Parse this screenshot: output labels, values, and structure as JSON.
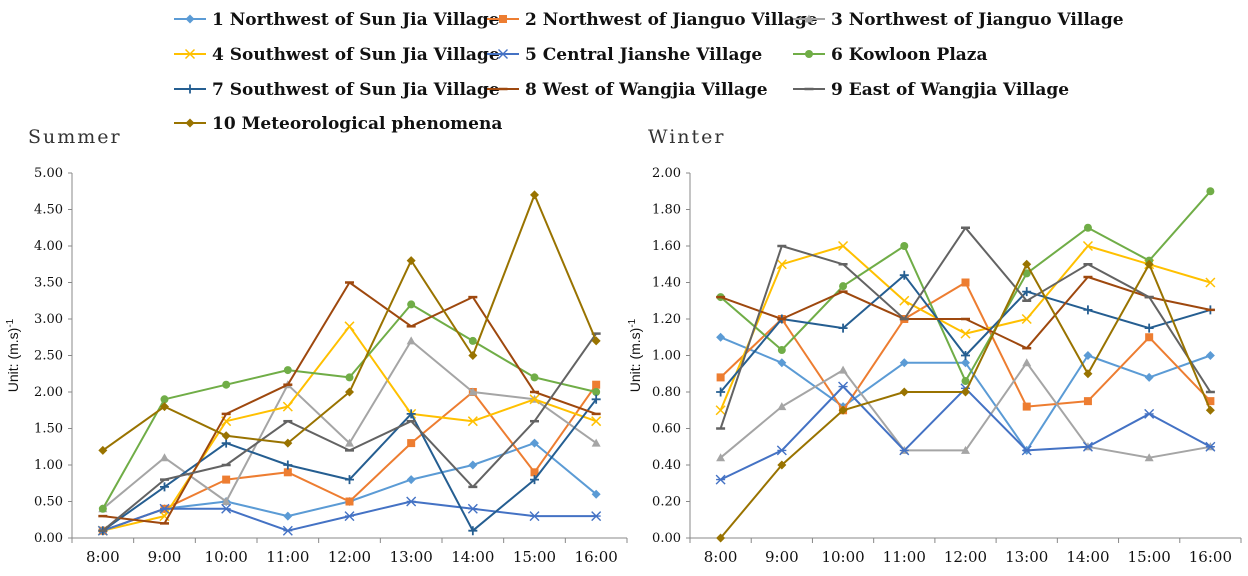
{
  "legend_layout_rows": [
    [
      0,
      1,
      2
    ],
    [
      3,
      4,
      5
    ],
    [
      6,
      7,
      8
    ],
    [
      9
    ]
  ],
  "chart_data": [
    {
      "type": "line",
      "title": "Summer",
      "ylabel": "Unit: (m.s)",
      "ylabel_sup": "-1",
      "ylim": [
        0,
        5
      ],
      "yticks": [
        "0.00",
        "0.50",
        "1.00",
        "1.50",
        "2.00",
        "2.50",
        "3.00",
        "3.50",
        "4.00",
        "4.50",
        "5.00"
      ],
      "x": [
        "8:00",
        "9:00",
        "10:00",
        "11:00",
        "12:00",
        "13:00",
        "14:00",
        "15:00",
        "16:00"
      ],
      "series": [
        {
          "name": "1 Northwest of Sun Jia Village",
          "color": "#5b9bd5",
          "marker": "diamond",
          "values": [
            0.1,
            0.4,
            0.5,
            0.3,
            0.5,
            0.8,
            1.0,
            1.3,
            0.6
          ]
        },
        {
          "name": "2 Northwest of Jianguo Village",
          "color": "#ed7d31",
          "marker": "square",
          "values": [
            0.1,
            0.4,
            0.8,
            0.9,
            0.5,
            1.3,
            2.0,
            0.9,
            2.1
          ]
        },
        {
          "name": "3 Northwest of Jianguo Village",
          "color": "#a5a5a5",
          "marker": "triangle",
          "values": [
            0.4,
            1.1,
            0.5,
            2.1,
            1.3,
            2.7,
            2.0,
            1.9,
            1.3
          ]
        },
        {
          "name": "4 Southwest of Sun Jia Village",
          "color": "#ffc000",
          "marker": "x",
          "values": [
            0.1,
            0.3,
            1.6,
            1.8,
            2.9,
            1.7,
            1.6,
            1.9,
            1.6
          ]
        },
        {
          "name": "5 Central Jianshe Village",
          "color": "#4472c4",
          "marker": "star",
          "values": [
            0.1,
            0.4,
            0.4,
            0.1,
            0.3,
            0.5,
            0.4,
            0.3,
            0.3
          ]
        },
        {
          "name": "6 Kowloon Plaza",
          "color": "#70ad47",
          "marker": "circle",
          "values": [
            0.4,
            1.9,
            2.1,
            2.3,
            2.2,
            3.2,
            2.7,
            2.2,
            2.0
          ]
        },
        {
          "name": "7 Southwest of Sun Jia Village",
          "color": "#255e91",
          "marker": "plus",
          "values": [
            0.1,
            0.7,
            1.3,
            1.0,
            0.8,
            1.7,
            0.1,
            0.8,
            1.9
          ]
        },
        {
          "name": "8 West of Wangjia Village",
          "color": "#9e480e",
          "marker": "dash",
          "values": [
            0.3,
            0.2,
            1.7,
            2.1,
            3.5,
            2.9,
            3.3,
            2.0,
            1.7
          ]
        },
        {
          "name": "9 East of Wangjia Village",
          "color": "#636363",
          "marker": "dash",
          "values": [
            0.1,
            0.8,
            1.0,
            1.6,
            1.2,
            1.6,
            0.7,
            1.6,
            2.8
          ]
        },
        {
          "name": "10 Meteorological phenomena",
          "color": "#997300",
          "marker": "diamond",
          "values": [
            1.2,
            1.8,
            1.4,
            1.3,
            2.0,
            3.8,
            2.5,
            4.7,
            2.7
          ]
        }
      ]
    },
    {
      "type": "line",
      "title": "Winter",
      "ylabel": "Unit: (m.s)",
      "ylabel_sup": "-1",
      "ylim": [
        0,
        2
      ],
      "yticks": [
        "0.00",
        "0.20",
        "0.40",
        "0.60",
        "0.80",
        "1.00",
        "1.20",
        "1.40",
        "1.60",
        "1.80",
        "2.00"
      ],
      "x": [
        "8:00",
        "9:00",
        "10:00",
        "11:00",
        "12:00",
        "13:00",
        "14:00",
        "15:00",
        "16:00"
      ],
      "series": [
        {
          "name": "1 Northwest of Sun Jia Village",
          "color": "#5b9bd5",
          "marker": "diamond",
          "values": [
            1.1,
            0.96,
            0.72,
            0.96,
            0.96,
            0.48,
            1.0,
            0.88,
            1.0
          ]
        },
        {
          "name": "2 Northwest of Jianguo Village",
          "color": "#ed7d31",
          "marker": "square",
          "values": [
            0.88,
            1.2,
            0.7,
            1.2,
            1.4,
            0.72,
            0.75,
            1.1,
            0.75
          ]
        },
        {
          "name": "3 Northwest of Jianguo Village",
          "color": "#a5a5a5",
          "marker": "triangle",
          "values": [
            0.44,
            0.72,
            0.92,
            0.48,
            0.48,
            0.96,
            0.5,
            0.44,
            0.5
          ]
        },
        {
          "name": "4 Southwest of Sun Jia Village",
          "color": "#ffc000",
          "marker": "x",
          "values": [
            0.7,
            1.5,
            1.6,
            1.3,
            1.12,
            1.2,
            1.6,
            1.5,
            1.4
          ]
        },
        {
          "name": "5 Central Jianshe Village",
          "color": "#4472c4",
          "marker": "star",
          "values": [
            0.32,
            0.48,
            0.83,
            0.48,
            0.82,
            0.48,
            0.5,
            0.68,
            0.5
          ]
        },
        {
          "name": "6 Kowloon Plaza",
          "color": "#70ad47",
          "marker": "circle",
          "values": [
            1.32,
            1.03,
            1.38,
            1.6,
            0.86,
            1.45,
            1.7,
            1.52,
            1.9
          ]
        },
        {
          "name": "7 Southwest of Sun Jia Village",
          "color": "#255e91",
          "marker": "plus",
          "values": [
            0.8,
            1.2,
            1.15,
            1.44,
            1.0,
            1.35,
            1.25,
            1.15,
            1.25
          ]
        },
        {
          "name": "8 West of Wangjia Village",
          "color": "#9e480e",
          "marker": "dash",
          "values": [
            1.32,
            1.2,
            1.35,
            1.2,
            1.2,
            1.04,
            1.43,
            1.32,
            1.25
          ]
        },
        {
          "name": "9 East of Wangjia Village",
          "color": "#636363",
          "marker": "dash",
          "values": [
            0.6,
            1.6,
            1.5,
            1.2,
            1.7,
            1.3,
            1.5,
            1.32,
            0.8
          ]
        },
        {
          "name": "10 Meteorological phenomena",
          "color": "#997300",
          "marker": "diamond",
          "values": [
            0.0,
            0.4,
            0.7,
            0.8,
            0.8,
            1.5,
            0.9,
            1.5,
            0.7
          ]
        }
      ]
    }
  ]
}
